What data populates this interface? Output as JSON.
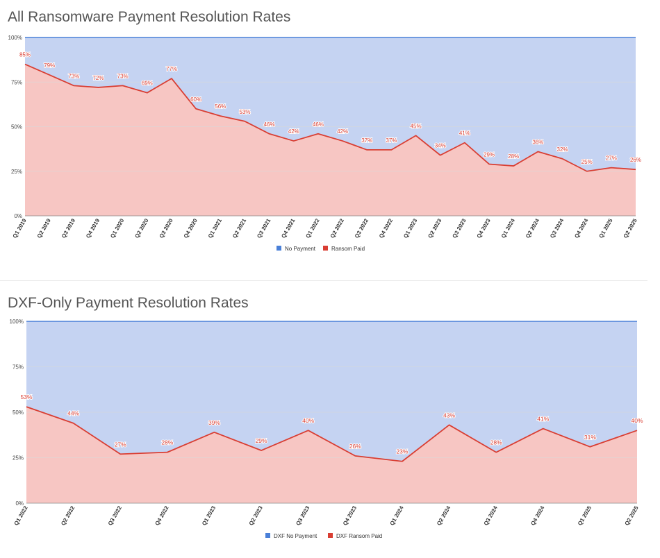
{
  "colors": {
    "no_payment_fill": "#c5d3f2",
    "ransom_fill": "#f7c6c3",
    "ransom_line": "#d93e33",
    "no_payment_legend": "#4a80d8",
    "top_line": "#4a80d8",
    "gridline": "#d9d9d9",
    "title": "#555555"
  },
  "chart_data": [
    {
      "type": "area",
      "stacked": "percent",
      "title": "All Ransomware Payment Resolution Rates",
      "y_ticks": [
        "100%",
        "75%",
        "50%",
        "25%",
        "0%"
      ],
      "ylim": [
        0,
        100
      ],
      "legend_position": "bottom",
      "categories": [
        "Q1 2019",
        "Q2 2019",
        "Q3 2019",
        "Q4 2019",
        "Q1 2020",
        "Q2 2020",
        "Q3 2020",
        "Q4 2020",
        "Q1 2021",
        "Q2 2021",
        "Q3 2021",
        "Q4 2021",
        "Q1 2022",
        "Q2 2022",
        "Q3 2022",
        "Q4 2022",
        "Q1 2023",
        "Q2 2023",
        "Q3 2023",
        "Q4 2023",
        "Q1 2024",
        "Q2 2024",
        "Q3 2024",
        "Q4 2024",
        "Q1 2025",
        "Q2 2025"
      ],
      "series": [
        {
          "name": "No Payment",
          "values": [
            15,
            21,
            27,
            28,
            27,
            31,
            23,
            40,
            44,
            47,
            54,
            58,
            54,
            58,
            63,
            63,
            55,
            66,
            59,
            71,
            72,
            64,
            68,
            75,
            73,
            74
          ]
        },
        {
          "name": "Ransom Paid",
          "values": [
            85,
            79,
            73,
            72,
            73,
            69,
            77,
            60,
            56,
            53,
            46,
            42,
            46,
            42,
            37,
            37,
            45,
            34,
            41,
            29,
            28,
            36,
            32,
            25,
            27,
            26
          ]
        }
      ],
      "data_labels": [
        "85%",
        "79%",
        "73%",
        "72%",
        "73%",
        "69%",
        "77%",
        "60%",
        "56%",
        "53%",
        "46%",
        "42%",
        "46%",
        "42%",
        "37%",
        "37%",
        "45%",
        "34%",
        "41%",
        "29%",
        "28%",
        "36%",
        "32%",
        "25%",
        "27%",
        "26%"
      ]
    },
    {
      "type": "area",
      "stacked": "percent",
      "title": "DXF-Only Payment Resolution Rates",
      "y_ticks": [
        "100%",
        "75%",
        "50%",
        "25%",
        "0%"
      ],
      "ylim": [
        0,
        100
      ],
      "legend_position": "bottom",
      "categories": [
        "Q1 2022",
        "Q2 2022",
        "Q3 2022",
        "Q4 2022",
        "Q1 2023",
        "Q2 2023",
        "Q3 2023",
        "Q4 2023",
        "Q1 2024",
        "Q2 2024",
        "Q3 2024",
        "Q4 2024",
        "Q1 2025",
        "Q2 2025"
      ],
      "series": [
        {
          "name": "DXF No Payment",
          "values": [
            47,
            56,
            73,
            72,
            61,
            71,
            60,
            74,
            77,
            57,
            72,
            59,
            69,
            60
          ]
        },
        {
          "name": "DXF Ransom Paid",
          "values": [
            53,
            44,
            27,
            28,
            39,
            29,
            40,
            26,
            23,
            43,
            28,
            41,
            31,
            40
          ]
        }
      ],
      "data_labels": [
        "53%",
        "44%",
        "27%",
        "28%",
        "39%",
        "29%",
        "40%",
        "26%",
        "23%",
        "43%",
        "28%",
        "41%",
        "31%",
        "40%"
      ]
    }
  ]
}
